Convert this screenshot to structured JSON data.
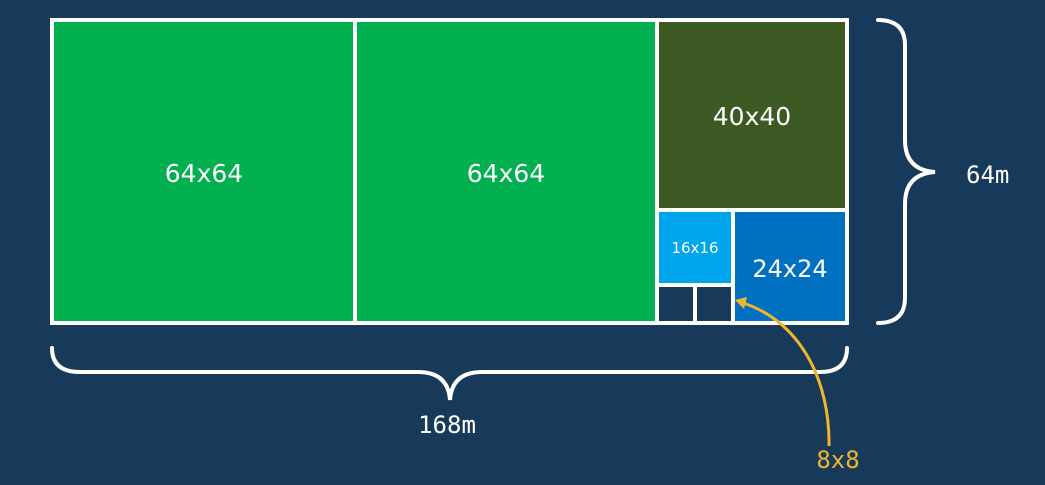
{
  "colors": {
    "background": "#183a5a",
    "border": "#ffffff",
    "tile_64": "#00b050",
    "tile_40": "#3e5a24",
    "tile_16": "#00a6ec",
    "tile_24": "#0070c0",
    "tile_8": "#183a5a",
    "callout": "#f0b52a"
  },
  "tiles": {
    "tile_64_a": "64x64",
    "tile_64_b": "64x64",
    "tile_40": "40x40",
    "tile_16": "16x16",
    "tile_24": "24x24"
  },
  "dimensions": {
    "height_label": "64m",
    "width_label": "168m"
  },
  "callout": {
    "label": "8x8"
  }
}
